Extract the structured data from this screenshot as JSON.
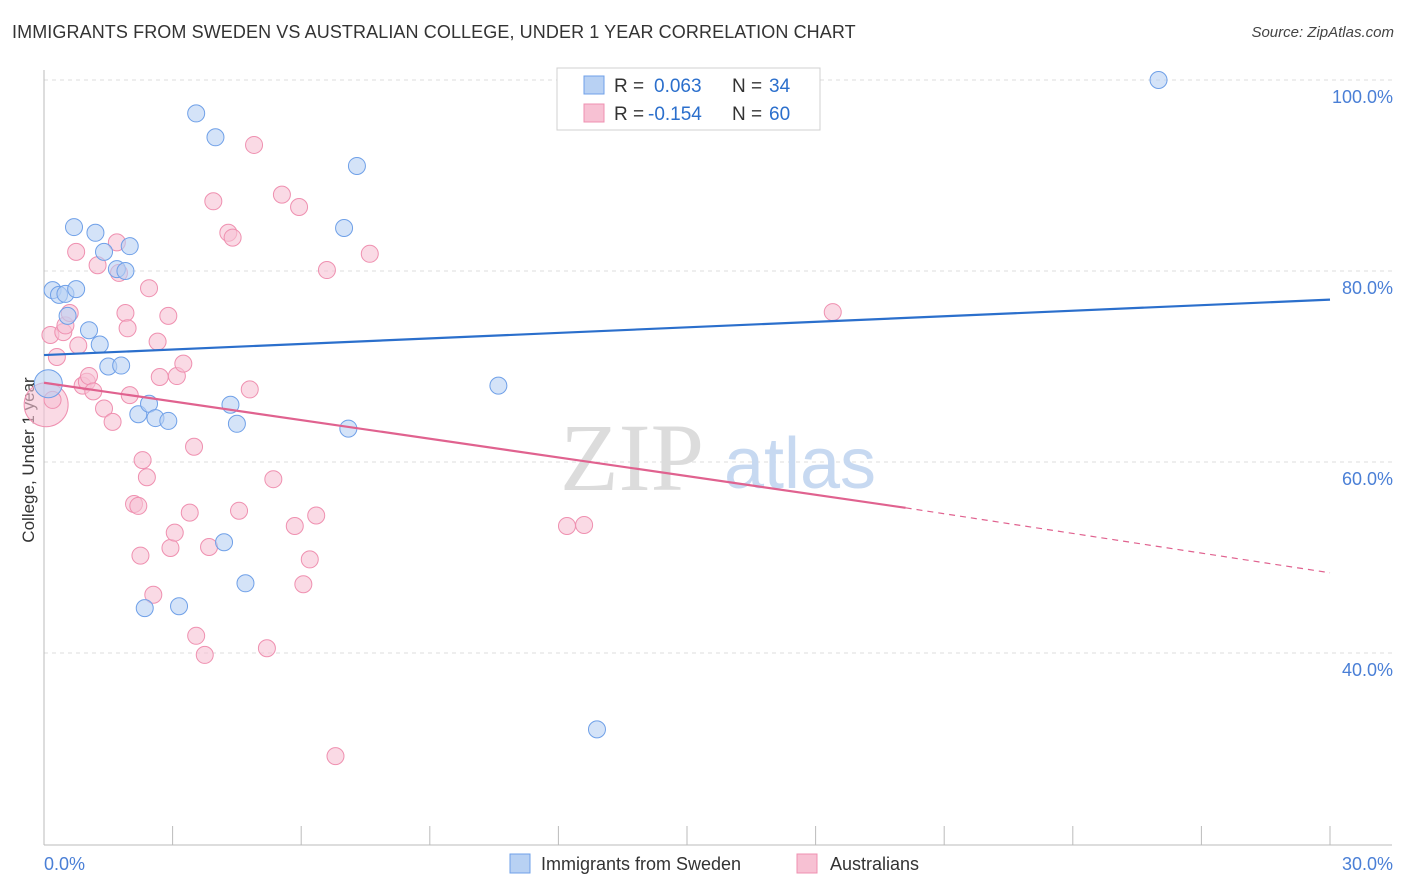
{
  "title": "IMMIGRANTS FROM SWEDEN VS AUSTRALIAN COLLEGE, UNDER 1 YEAR CORRELATION CHART",
  "source": "Source: ZipAtlas.com",
  "watermark": {
    "zip": "ZIP",
    "atlas": "atlas"
  },
  "chart_data": {
    "type": "scatter",
    "ylabel": "College, Under 1 year",
    "xlabel": "",
    "xlim": [
      0,
      30
    ],
    "ylim": [
      20,
      104
    ],
    "x_tick_labels": [
      {
        "value": 0,
        "label": "0.0%"
      },
      {
        "value": 30,
        "label": "30.0%"
      }
    ],
    "y_tick_labels": [
      {
        "value": 100,
        "label": "100.0%"
      },
      {
        "value": 80,
        "label": "80.0%"
      },
      {
        "value": 60,
        "label": "60.0%"
      },
      {
        "value": 40,
        "label": "40.0%"
      }
    ],
    "grid": true,
    "legend_position": "top-center",
    "stats": [
      {
        "r_label": "R =",
        "r": "0.063",
        "n_label": "N =",
        "n": "34"
      },
      {
        "r_label": "R =",
        "r": "-0.154",
        "n_label": "N =",
        "n": "60"
      }
    ],
    "series": [
      {
        "name": "Immigrants from Sweden",
        "color": "#6fa0e8",
        "fill": "#b8d1f3",
        "line_color": "#2b6fcc",
        "trend": {
          "x0": 0,
          "y0": 71.2,
          "x1": 30,
          "y1": 77.0
        },
        "points": [
          [
            0.1,
            68.2
          ],
          [
            0.2,
            78.0
          ],
          [
            0.35,
            77.5
          ],
          [
            0.55,
            75.3
          ],
          [
            0.5,
            77.6
          ],
          [
            0.75,
            78.1
          ],
          [
            1.05,
            73.8
          ],
          [
            0.7,
            84.6
          ],
          [
            1.2,
            84.0
          ],
          [
            1.4,
            82.0
          ],
          [
            1.7,
            80.2
          ],
          [
            1.9,
            80.0
          ],
          [
            2.0,
            82.6
          ],
          [
            1.3,
            72.3
          ],
          [
            1.5,
            70.0
          ],
          [
            1.8,
            70.1
          ],
          [
            2.2,
            65.0
          ],
          [
            2.45,
            66.1
          ],
          [
            2.6,
            64.6
          ],
          [
            2.9,
            64.3
          ],
          [
            3.55,
            96.5
          ],
          [
            4.0,
            94.0
          ],
          [
            4.35,
            66.0
          ],
          [
            4.5,
            64.0
          ],
          [
            4.2,
            51.6
          ],
          [
            4.7,
            47.3
          ],
          [
            2.35,
            44.7
          ],
          [
            3.15,
            44.9
          ],
          [
            7.0,
            84.5
          ],
          [
            7.3,
            91.0
          ],
          [
            7.1,
            63.5
          ],
          [
            10.6,
            68.0
          ],
          [
            12.9,
            32.0
          ],
          [
            26.0,
            100.0
          ]
        ]
      },
      {
        "name": "Australians",
        "color": "#ef90b0",
        "fill": "#f7c1d3",
        "line_color": "#e0628f",
        "trend": {
          "x0": 0,
          "y0": 68.3,
          "x1": 20.1,
          "y1": 55.2
        },
        "trend_dashed": {
          "x0": 20.1,
          "y0": 55.2,
          "x1": 30,
          "y1": 48.4
        },
        "points": [
          [
            0.05,
            66.0
          ],
          [
            0.15,
            73.3
          ],
          [
            0.3,
            71.0
          ],
          [
            0.45,
            73.6
          ],
          [
            0.5,
            74.3
          ],
          [
            0.6,
            75.6
          ],
          [
            0.8,
            72.2
          ],
          [
            0.75,
            82.0
          ],
          [
            0.9,
            68.0
          ],
          [
            1.0,
            68.4
          ],
          [
            1.05,
            69.0
          ],
          [
            1.15,
            67.4
          ],
          [
            1.25,
            80.6
          ],
          [
            1.4,
            65.6
          ],
          [
            1.6,
            64.2
          ],
          [
            1.7,
            83.0
          ],
          [
            1.75,
            79.8
          ],
          [
            1.9,
            75.6
          ],
          [
            1.95,
            74.0
          ],
          [
            2.0,
            67.0
          ],
          [
            2.1,
            55.6
          ],
          [
            2.2,
            55.4
          ],
          [
            2.25,
            50.2
          ],
          [
            2.3,
            60.2
          ],
          [
            2.4,
            58.4
          ],
          [
            2.45,
            78.2
          ],
          [
            2.55,
            46.1
          ],
          [
            2.65,
            72.6
          ],
          [
            2.7,
            68.9
          ],
          [
            2.9,
            75.3
          ],
          [
            2.95,
            51.0
          ],
          [
            3.05,
            52.6
          ],
          [
            3.1,
            69.0
          ],
          [
            3.25,
            70.3
          ],
          [
            3.4,
            54.7
          ],
          [
            3.5,
            61.6
          ],
          [
            3.55,
            41.8
          ],
          [
            3.75,
            39.8
          ],
          [
            3.85,
            51.1
          ],
          [
            3.95,
            87.3
          ],
          [
            4.3,
            84.0
          ],
          [
            4.4,
            83.5
          ],
          [
            4.55,
            54.9
          ],
          [
            4.8,
            67.6
          ],
          [
            4.9,
            93.2
          ],
          [
            5.2,
            40.5
          ],
          [
            5.35,
            58.2
          ],
          [
            5.55,
            88.0
          ],
          [
            5.85,
            53.3
          ],
          [
            5.95,
            86.7
          ],
          [
            6.05,
            47.2
          ],
          [
            6.2,
            49.8
          ],
          [
            6.35,
            54.4
          ],
          [
            6.6,
            80.1
          ],
          [
            6.8,
            29.2
          ],
          [
            7.6,
            81.8
          ],
          [
            12.2,
            53.3
          ],
          [
            12.6,
            53.4
          ],
          [
            18.4,
            75.7
          ],
          [
            0.2,
            66.5
          ]
        ]
      }
    ]
  },
  "legend": {
    "items": [
      {
        "label": "Immigrants from Sweden"
      },
      {
        "label": "Australians"
      }
    ]
  }
}
